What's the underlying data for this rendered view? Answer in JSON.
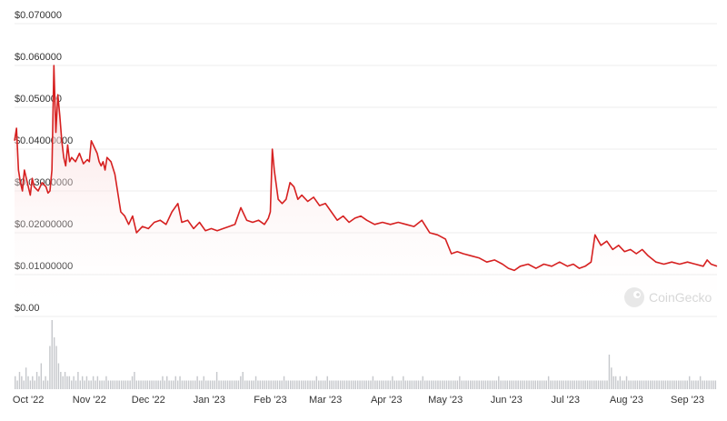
{
  "chart_data": {
    "type": "area",
    "y_axis": {
      "ylim": [
        0,
        0.07
      ],
      "ticks": [
        0.0,
        0.01,
        0.02,
        0.03,
        0.04,
        0.05,
        0.06,
        0.07
      ],
      "tick_labels": [
        "$0.00",
        "$0.01000000",
        "$0.02000000",
        "$0.03000000",
        "$0.04000000",
        "$0.050000",
        "$0.060000",
        "$0.070000"
      ]
    },
    "x_axis": {
      "range": [
        "2022-09-24",
        "2023-09-16"
      ],
      "ticks": [
        "2022-10-01",
        "2022-11-01",
        "2022-12-01",
        "2023-01-01",
        "2023-02-01",
        "2023-03-01",
        "2023-04-01",
        "2023-05-01",
        "2023-06-01",
        "2023-07-01",
        "2023-08-01",
        "2023-09-01"
      ],
      "tick_labels": [
        "Oct '22",
        "Nov '22",
        "Dec '22",
        "Jan '23",
        "Feb '23",
        "Mar '23",
        "Apr '23",
        "May '23",
        "Jun '23",
        "Jul '23",
        "Aug '23",
        "Sep '23"
      ]
    },
    "grid": "horizontal",
    "colors": {
      "line": "#d62020",
      "fill_top": "#f7c9c9",
      "volume": "#c6c8cc",
      "grid": "#ececec"
    },
    "price": {
      "x": [
        "2022-09-24",
        "2022-09-25",
        "2022-09-26",
        "2022-09-27",
        "2022-09-28",
        "2022-09-29",
        "2022-09-30",
        "2022-10-01",
        "2022-10-02",
        "2022-10-03",
        "2022-10-04",
        "2022-10-06",
        "2022-10-08",
        "2022-10-10",
        "2022-10-11",
        "2022-10-12",
        "2022-10-13",
        "2022-10-14",
        "2022-10-15",
        "2022-10-16",
        "2022-10-17",
        "2022-10-18",
        "2022-10-19",
        "2022-10-20",
        "2022-10-21",
        "2022-10-22",
        "2022-10-23",
        "2022-10-25",
        "2022-10-27",
        "2022-10-29",
        "2022-10-31",
        "2022-11-01",
        "2022-11-02",
        "2022-11-03",
        "2022-11-04",
        "2022-11-05",
        "2022-11-06",
        "2022-11-07",
        "2022-11-08",
        "2022-11-09",
        "2022-11-10",
        "2022-11-12",
        "2022-11-14",
        "2022-11-17",
        "2022-11-19",
        "2022-11-21",
        "2022-11-23",
        "2022-11-25",
        "2022-11-28",
        "2022-12-01",
        "2022-12-04",
        "2022-12-07",
        "2022-12-10",
        "2022-12-13",
        "2022-12-16",
        "2022-12-18",
        "2022-12-21",
        "2022-12-24",
        "2022-12-27",
        "2022-12-30",
        "2023-01-02",
        "2023-01-05",
        "2023-01-08",
        "2023-01-11",
        "2023-01-14",
        "2023-01-17",
        "2023-01-20",
        "2023-01-23",
        "2023-01-26",
        "2023-01-29",
        "2023-01-31",
        "2023-02-01",
        "2023-02-02",
        "2023-02-03",
        "2023-02-05",
        "2023-02-07",
        "2023-02-09",
        "2023-02-11",
        "2023-02-13",
        "2023-02-15",
        "2023-02-17",
        "2023-02-20",
        "2023-02-23",
        "2023-02-26",
        "2023-03-01",
        "2023-03-04",
        "2023-03-07",
        "2023-03-10",
        "2023-03-13",
        "2023-03-16",
        "2023-03-19",
        "2023-03-22",
        "2023-03-26",
        "2023-03-30",
        "2023-04-03",
        "2023-04-07",
        "2023-04-11",
        "2023-04-15",
        "2023-04-19",
        "2023-04-23",
        "2023-04-27",
        "2023-05-01",
        "2023-05-04",
        "2023-05-07",
        "2023-05-10",
        "2023-05-14",
        "2023-05-18",
        "2023-05-22",
        "2023-05-26",
        "2023-05-30",
        "2023-06-02",
        "2023-06-05",
        "2023-06-08",
        "2023-06-12",
        "2023-06-16",
        "2023-06-20",
        "2023-06-24",
        "2023-06-28",
        "2023-07-02",
        "2023-07-05",
        "2023-07-08",
        "2023-07-11",
        "2023-07-14",
        "2023-07-16",
        "2023-07-19",
        "2023-07-22",
        "2023-07-25",
        "2023-07-28",
        "2023-07-31",
        "2023-08-03",
        "2023-08-06",
        "2023-08-09",
        "2023-08-12",
        "2023-08-16",
        "2023-08-20",
        "2023-08-24",
        "2023-08-28",
        "2023-09-01",
        "2023-09-05",
        "2023-09-09",
        "2023-09-11",
        "2023-09-13",
        "2023-09-16"
      ],
      "y": [
        0.042,
        0.045,
        0.035,
        0.032,
        0.03,
        0.035,
        0.033,
        0.031,
        0.029,
        0.033,
        0.031,
        0.03,
        0.032,
        0.031,
        0.0295,
        0.03,
        0.035,
        0.06,
        0.044,
        0.053,
        0.048,
        0.042,
        0.038,
        0.036,
        0.041,
        0.037,
        0.038,
        0.037,
        0.039,
        0.0365,
        0.0375,
        0.037,
        0.042,
        0.041,
        0.04,
        0.039,
        0.037,
        0.036,
        0.037,
        0.035,
        0.038,
        0.037,
        0.034,
        0.025,
        0.024,
        0.022,
        0.024,
        0.02,
        0.0215,
        0.021,
        0.0225,
        0.023,
        0.022,
        0.025,
        0.027,
        0.0225,
        0.023,
        0.021,
        0.0225,
        0.0205,
        0.021,
        0.0205,
        0.021,
        0.0215,
        0.022,
        0.026,
        0.023,
        0.0225,
        0.023,
        0.022,
        0.0235,
        0.025,
        0.04,
        0.035,
        0.028,
        0.027,
        0.028,
        0.032,
        0.031,
        0.028,
        0.029,
        0.0275,
        0.0285,
        0.0265,
        0.027,
        0.025,
        0.023,
        0.024,
        0.0225,
        0.0235,
        0.024,
        0.023,
        0.022,
        0.0225,
        0.022,
        0.0225,
        0.022,
        0.0215,
        0.023,
        0.02,
        0.0195,
        0.0185,
        0.015,
        0.0155,
        0.015,
        0.0145,
        0.014,
        0.013,
        0.0135,
        0.0125,
        0.0115,
        0.011,
        0.012,
        0.0125,
        0.0115,
        0.0125,
        0.012,
        0.013,
        0.012,
        0.0125,
        0.0115,
        0.012,
        0.013,
        0.0195,
        0.017,
        0.018,
        0.016,
        0.017,
        0.0155,
        0.016,
        0.015,
        0.016,
        0.0145,
        0.013,
        0.0125,
        0.013,
        0.0125,
        0.013,
        0.0125,
        0.012,
        0.0135,
        0.0125,
        0.012
      ]
    },
    "volume_bars": [
      3,
      2,
      4,
      3,
      2,
      5,
      3,
      2,
      3,
      2,
      4,
      3,
      6,
      2,
      3,
      2,
      10,
      16,
      12,
      10,
      6,
      4,
      3,
      4,
      3,
      3,
      2,
      3,
      2,
      4,
      2,
      3,
      2,
      3,
      2,
      2,
      3,
      2,
      3,
      2,
      2,
      2,
      3,
      2,
      2,
      2,
      2,
      2,
      2,
      2,
      2,
      2,
      2,
      2,
      3,
      4,
      2,
      2,
      2,
      2,
      2,
      2,
      2,
      2,
      2,
      2,
      2,
      2,
      3,
      2,
      3,
      2,
      2,
      2,
      3,
      2,
      3,
      2,
      2,
      2,
      2,
      2,
      2,
      2,
      3,
      2,
      2,
      3,
      2,
      2,
      2,
      2,
      2,
      4,
      2,
      2,
      2,
      2,
      2,
      2,
      2,
      2,
      2,
      2,
      3,
      4,
      2,
      2,
      2,
      2,
      2,
      3,
      2,
      2,
      2,
      2,
      2,
      2,
      2,
      2,
      2,
      2,
      2,
      2,
      3,
      2,
      2,
      2,
      2,
      2,
      2,
      2,
      2,
      2,
      2,
      2,
      2,
      2,
      2,
      3,
      2,
      2,
      2,
      2,
      3,
      2,
      2,
      2,
      2,
      2,
      2,
      2,
      2,
      2,
      2,
      2,
      2,
      2,
      2,
      2,
      2,
      2,
      2,
      2,
      2,
      3,
      2,
      2,
      2,
      2,
      2,
      2,
      2,
      2,
      3,
      2,
      2,
      2,
      2,
      3,
      2,
      2,
      2,
      2,
      2,
      2,
      2,
      2,
      3,
      2,
      2,
      2,
      2,
      2,
      2,
      2,
      2,
      2,
      2,
      2,
      2,
      2,
      2,
      2,
      2,
      3,
      2,
      2,
      2,
      2,
      2,
      2,
      2,
      2,
      2,
      2,
      2,
      2,
      2,
      2,
      2,
      2,
      2,
      3,
      2,
      2,
      2,
      2,
      2,
      2,
      2,
      2,
      2,
      2,
      2,
      2,
      2,
      2,
      2,
      2,
      2,
      2,
      2,
      2,
      2,
      2,
      3,
      2,
      2,
      2,
      2,
      2,
      2,
      2,
      2,
      2,
      2,
      2,
      2,
      2,
      2,
      2,
      2,
      2,
      2,
      2,
      2,
      2,
      2,
      2,
      2,
      2,
      2,
      2,
      8,
      5,
      3,
      3,
      2,
      3,
      2,
      2,
      3,
      2,
      2,
      2,
      2,
      2,
      2,
      2,
      2,
      2,
      2,
      2,
      2,
      2,
      2,
      2,
      2,
      2,
      2,
      2,
      2,
      2,
      2,
      2,
      2,
      2,
      2,
      2,
      2,
      3,
      2,
      2,
      2,
      2,
      3,
      2,
      2,
      2,
      2,
      2,
      2,
      2
    ],
    "watermark": {
      "text": "CoinGecko",
      "icon": "coingecko-logo-icon"
    }
  }
}
